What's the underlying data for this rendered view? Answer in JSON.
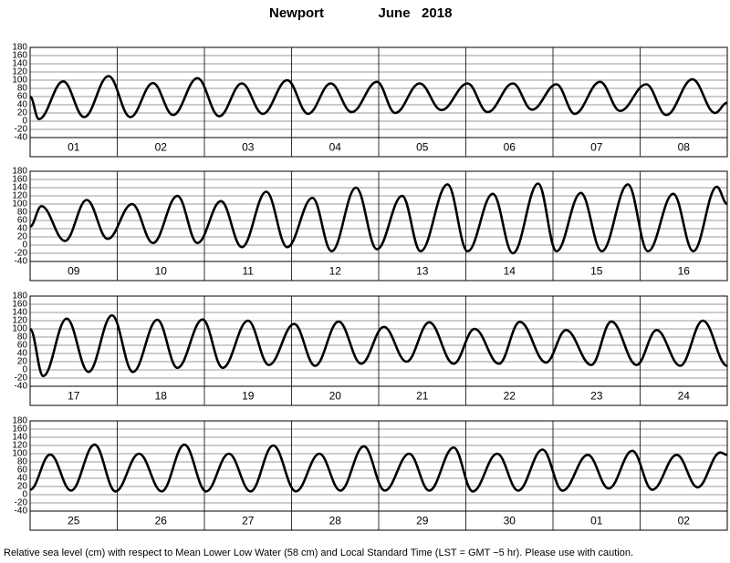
{
  "header": {
    "place": "Newport",
    "date": "June   2018"
  },
  "footnote": "Relative sea level (cm) with respect to Mean Lower Low Water (58 cm) and Local Standard Time (LST = GMT −5 hr). Please use with caution.",
  "chart_data": [
    {
      "type": "line",
      "categories": [
        "01",
        "02",
        "03",
        "04",
        "05",
        "06",
        "07",
        "08"
      ],
      "xlim": [
        0,
        8
      ],
      "ylim": [
        -40,
        180
      ],
      "yticks": [
        -40,
        -20,
        0,
        20,
        40,
        60,
        80,
        100,
        120,
        140,
        160,
        180
      ],
      "grid": true,
      "x": [
        0,
        0.1,
        0.38,
        0.62,
        0.9,
        1.15,
        1.41,
        1.64,
        1.92,
        2.17,
        2.43,
        2.67,
        2.95,
        3.19,
        3.45,
        3.69,
        3.98,
        4.19,
        4.47,
        4.72,
        5.02,
        5.25,
        5.54,
        5.76,
        6.04,
        6.25,
        6.54,
        6.77,
        7.07,
        7.3,
        7.6,
        7.86,
        8
      ],
      "series": [
        {
          "color": "#000000",
          "values": [
            60,
            5,
            97,
            10,
            110,
            10,
            93,
            15,
            105,
            12,
            92,
            18,
            100,
            18,
            92,
            22,
            96,
            20,
            92,
            27,
            92,
            22,
            92,
            28,
            90,
            18,
            96,
            25,
            90,
            15,
            102,
            20,
            45
          ]
        }
      ]
    },
    {
      "type": "line",
      "categories": [
        "09",
        "10",
        "11",
        "12",
        "13",
        "14",
        "15",
        "16"
      ],
      "xlim": [
        0,
        8
      ],
      "ylim": [
        -40,
        180
      ],
      "yticks": [
        -40,
        -20,
        0,
        20,
        40,
        60,
        80,
        100,
        120,
        140,
        160,
        180
      ],
      "grid": true,
      "x": [
        0,
        0.13,
        0.4,
        0.65,
        0.89,
        1.17,
        1.41,
        1.69,
        1.92,
        2.19,
        2.43,
        2.71,
        2.95,
        3.24,
        3.46,
        3.74,
        3.98,
        4.27,
        4.48,
        4.79,
        5.02,
        5.31,
        5.54,
        5.83,
        6.04,
        6.32,
        6.56,
        6.86,
        7.09,
        7.38,
        7.61,
        7.88,
        8
      ],
      "series": [
        {
          "color": "#000000",
          "values": [
            45,
            95,
            10,
            110,
            15,
            100,
            5,
            120,
            5,
            107,
            -5,
            130,
            -5,
            115,
            -15,
            140,
            -10,
            120,
            -15,
            148,
            -15,
            125,
            -20,
            150,
            -15,
            127,
            -15,
            148,
            -15,
            125,
            -15,
            142,
            100
          ]
        }
      ]
    },
    {
      "type": "line",
      "categories": [
        "17",
        "18",
        "19",
        "20",
        "21",
        "22",
        "23",
        "24"
      ],
      "xlim": [
        0,
        8
      ],
      "ylim": [
        -40,
        180
      ],
      "yticks": [
        -40,
        -20,
        0,
        20,
        40,
        60,
        80,
        100,
        120,
        140,
        160,
        180
      ],
      "grid": true,
      "x": [
        0,
        0.15,
        0.42,
        0.67,
        0.94,
        1.18,
        1.46,
        1.69,
        1.98,
        2.21,
        2.5,
        2.74,
        3.03,
        3.27,
        3.54,
        3.8,
        4.06,
        4.32,
        4.58,
        4.86,
        5.1,
        5.38,
        5.62,
        5.92,
        6.15,
        6.44,
        6.67,
        6.96,
        7.19,
        7.46,
        7.72,
        8
      ],
      "series": [
        {
          "color": "#000000",
          "values": [
            100,
            -15,
            125,
            -5,
            133,
            -5,
            122,
            5,
            123,
            5,
            120,
            12,
            112,
            10,
            118,
            15,
            105,
            20,
            116,
            15,
            100,
            15,
            117,
            18,
            97,
            12,
            118,
            12,
            97,
            10,
            120,
            10
          ]
        }
      ]
    },
    {
      "type": "line",
      "categories": [
        "25",
        "26",
        "27",
        "28",
        "29",
        "30",
        "01",
        "02"
      ],
      "xlim": [
        0,
        8
      ],
      "ylim": [
        -40,
        180
      ],
      "yticks": [
        -40,
        -20,
        0,
        20,
        40,
        60,
        80,
        100,
        120,
        140,
        160,
        180
      ],
      "grid": true,
      "x": [
        0,
        0.23,
        0.47,
        0.74,
        0.98,
        1.25,
        1.51,
        1.77,
        2.02,
        2.28,
        2.53,
        2.79,
        3.05,
        3.32,
        3.56,
        3.83,
        4.07,
        4.35,
        4.58,
        4.86,
        5.08,
        5.36,
        5.6,
        5.88,
        6.11,
        6.4,
        6.64,
        6.91,
        7.14,
        7.42,
        7.66,
        7.92,
        8
      ],
      "series": [
        {
          "color": "#000000",
          "values": [
            12,
            98,
            10,
            122,
            8,
            100,
            8,
            122,
            8,
            100,
            8,
            120,
            8,
            100,
            10,
            118,
            10,
            100,
            10,
            115,
            8,
            100,
            10,
            110,
            10,
            97,
            15,
            107,
            12,
            97,
            18,
            103,
            97
          ]
        }
      ]
    }
  ]
}
